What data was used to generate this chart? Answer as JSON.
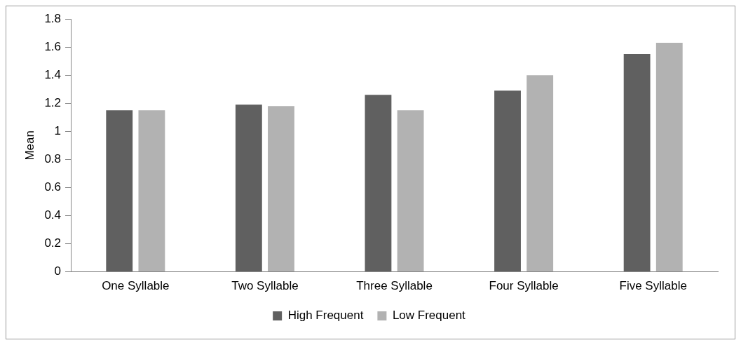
{
  "chart_data": {
    "type": "bar",
    "ylabel": "Mean",
    "categories": [
      "One Syllable",
      "Two Syllable",
      "Three Syllable",
      "Four Syllable",
      "Five Syllable"
    ],
    "series": [
      {
        "name": "High Frequent",
        "color": "#606060",
        "values": [
          1.15,
          1.19,
          1.26,
          1.29,
          1.55
        ]
      },
      {
        "name": "Low Frequent",
        "color": "#b2b2b2",
        "values": [
          1.15,
          1.18,
          1.15,
          1.4,
          1.63
        ]
      }
    ],
    "ylim": [
      0,
      1.8
    ],
    "yticks": [
      0,
      0.2,
      0.4,
      0.6,
      0.8,
      1,
      1.2,
      1.4,
      1.6,
      1.8
    ],
    "grid": false,
    "legend": "bottom"
  }
}
